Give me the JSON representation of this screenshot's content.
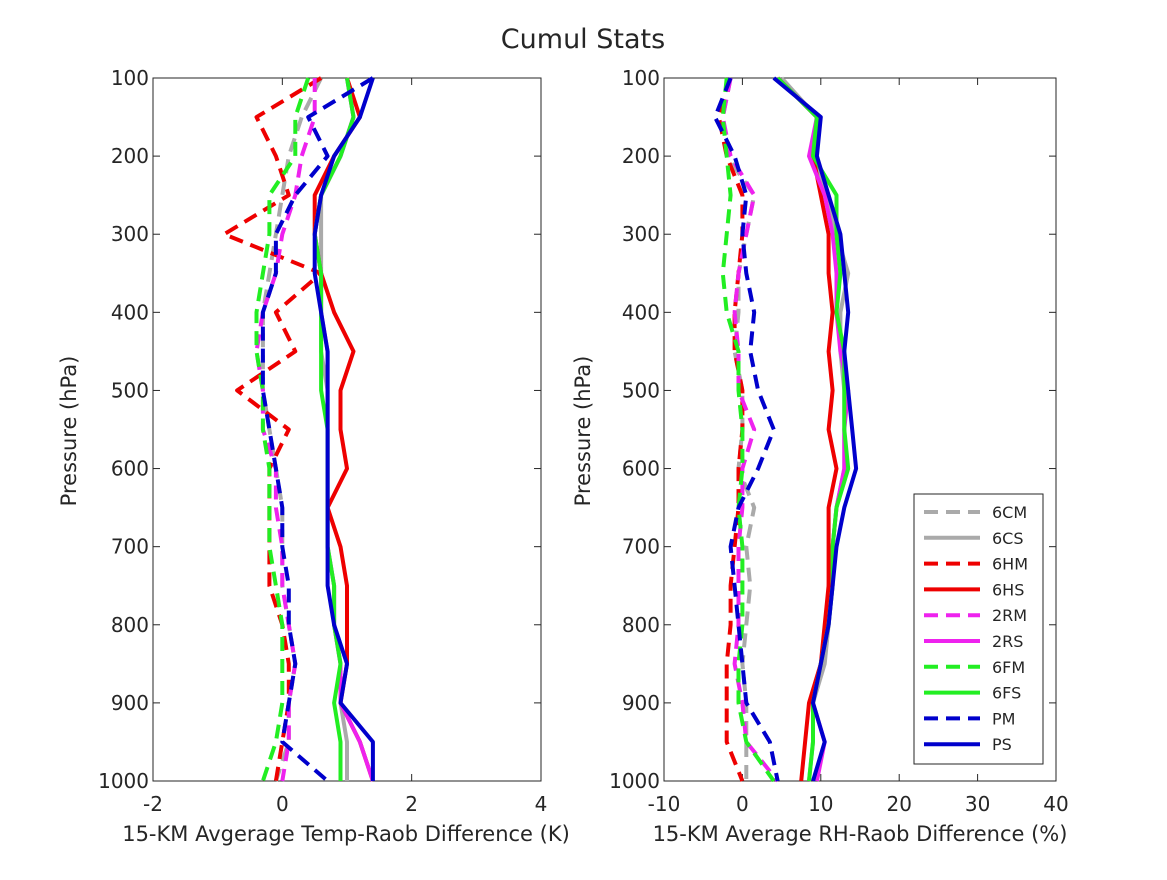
{
  "title": "Cumul Stats",
  "legend": {
    "placement": "bottom-right of right panel",
    "entries": [
      {
        "label": "6CM",
        "color": "#aaaaaa",
        "dashed": true
      },
      {
        "label": "6CS",
        "color": "#aaaaaa",
        "dashed": false
      },
      {
        "label": "6HM",
        "color": "#ee0000",
        "dashed": true
      },
      {
        "label": "6HS",
        "color": "#ee0000",
        "dashed": false
      },
      {
        "label": "2RM",
        "color": "#ee22ee",
        "dashed": true
      },
      {
        "label": "2RS",
        "color": "#ee22ee",
        "dashed": false
      },
      {
        "label": "6FM",
        "color": "#22ee22",
        "dashed": true
      },
      {
        "label": "6FS",
        "color": "#22ee22",
        "dashed": false
      },
      {
        "label": "PM",
        "color": "#0000cc",
        "dashed": true
      },
      {
        "label": "PS",
        "color": "#0000cc",
        "dashed": false
      }
    ]
  },
  "chart_data": [
    {
      "type": "line",
      "xlabel": "15-KM Avgerage Temp-Raob Difference (K)",
      "ylabel": "Pressure (hPa)",
      "xlim": [
        -2,
        4
      ],
      "ylim": [
        100,
        1000
      ],
      "y_reversed": true,
      "xticks": [
        "-2",
        "0",
        "2",
        "4"
      ],
      "yticks": [
        "100",
        "200",
        "300",
        "400",
        "500",
        "600",
        "700",
        "800",
        "900",
        "1000"
      ],
      "grid": false,
      "pressure_levels": [
        100,
        150,
        200,
        250,
        300,
        350,
        400,
        450,
        500,
        550,
        600,
        650,
        700,
        750,
        800,
        850,
        900,
        950,
        1000
      ],
      "series": [
        {
          "name": "6CM",
          "values": [
            0.6,
            0.3,
            0.1,
            0.0,
            -0.1,
            -0.2,
            -0.3,
            -0.3,
            -0.3,
            -0.2,
            -0.1,
            0.0,
            0.0,
            0.0,
            0.1,
            0.2,
            0.1,
            0.1,
            -0.1
          ]
        },
        {
          "name": "6CS",
          "values": [
            1.0,
            1.1,
            0.9,
            0.6,
            0.6,
            0.6,
            0.6,
            0.6,
            0.7,
            0.7,
            0.7,
            0.7,
            0.7,
            0.8,
            0.8,
            0.9,
            0.9,
            1.0,
            1.0
          ]
        },
        {
          "name": "6HM",
          "values": [
            0.6,
            -0.4,
            -0.1,
            0.1,
            -0.9,
            0.6,
            -0.1,
            0.2,
            -0.7,
            0.1,
            -0.2,
            -0.2,
            -0.2,
            -0.2,
            0.0,
            0.1,
            0.1,
            0.0,
            -0.1
          ]
        },
        {
          "name": "6HS",
          "values": [
            1.0,
            1.2,
            0.8,
            0.5,
            0.5,
            0.6,
            0.8,
            1.1,
            0.9,
            0.9,
            1.0,
            0.7,
            0.9,
            1.0,
            1.0,
            1.0,
            0.9,
            1.2,
            1.4
          ]
        },
        {
          "name": "2RM",
          "values": [
            0.5,
            0.5,
            0.3,
            0.2,
            0.0,
            -0.1,
            -0.3,
            -0.4,
            -0.3,
            -0.3,
            -0.1,
            -0.1,
            0.0,
            0.0,
            0.1,
            0.2,
            0.1,
            0.1,
            0.0
          ]
        },
        {
          "name": "2RS",
          "values": [
            1.0,
            1.1,
            0.9,
            0.6,
            0.5,
            0.6,
            0.6,
            0.7,
            0.7,
            0.7,
            0.7,
            0.7,
            0.7,
            0.8,
            0.8,
            0.9,
            0.9,
            1.2,
            1.4
          ]
        },
        {
          "name": "6FM",
          "values": [
            0.4,
            0.2,
            0.2,
            -0.2,
            -0.2,
            -0.3,
            -0.4,
            -0.4,
            -0.3,
            -0.3,
            -0.2,
            -0.2,
            -0.2,
            -0.1,
            0.0,
            0.0,
            0.0,
            -0.1,
            -0.3
          ]
        },
        {
          "name": "6FS",
          "values": [
            1.0,
            1.1,
            0.9,
            0.6,
            0.5,
            0.6,
            0.6,
            0.6,
            0.6,
            0.7,
            0.7,
            0.7,
            0.7,
            0.8,
            0.8,
            0.9,
            0.8,
            0.9,
            0.9
          ]
        },
        {
          "name": "PM",
          "values": [
            1.4,
            0.4,
            0.7,
            0.2,
            -0.1,
            -0.1,
            -0.3,
            -0.3,
            -0.3,
            -0.2,
            -0.1,
            0.0,
            0.0,
            0.1,
            0.1,
            0.2,
            0.1,
            0.0,
            0.7
          ]
        },
        {
          "name": "PS",
          "values": [
            1.4,
            1.2,
            0.8,
            0.6,
            0.5,
            0.5,
            0.6,
            0.7,
            0.7,
            0.7,
            0.7,
            0.7,
            0.7,
            0.7,
            0.8,
            1.0,
            0.9,
            1.4,
            1.4
          ]
        }
      ]
    },
    {
      "type": "line",
      "xlabel": "15-KM Average RH-Raob Difference (%)",
      "ylabel": "Pressure (hPa)",
      "xlim": [
        -10,
        40
      ],
      "ylim": [
        100,
        1000
      ],
      "y_reversed": true,
      "xticks": [
        "-10",
        "0",
        "10",
        "20",
        "30",
        "40"
      ],
      "yticks": [
        "100",
        "200",
        "300",
        "400",
        "500",
        "600",
        "700",
        "800",
        "900",
        "1000"
      ],
      "grid": false,
      "pressure_levels": [
        100,
        150,
        200,
        250,
        300,
        350,
        400,
        450,
        500,
        550,
        600,
        650,
        700,
        750,
        800,
        850,
        900,
        950,
        1000
      ],
      "series": [
        {
          "name": "6CM",
          "values": [
            -1.5,
            -2.5,
            -2.0,
            1.5,
            0.5,
            -0.5,
            -0.5,
            -1.0,
            0.0,
            0.0,
            -0.5,
            1.5,
            0.5,
            1.0,
            0.5,
            0.0,
            0.5,
            0.5,
            0.5
          ]
        },
        {
          "name": "6CS",
          "values": [
            5.0,
            9.5,
            9.0,
            11.0,
            12.0,
            13.5,
            12.5,
            12.5,
            13.0,
            13.0,
            13.0,
            12.0,
            11.5,
            11.0,
            11.0,
            10.5,
            9.0,
            9.0,
            8.5
          ]
        },
        {
          "name": "6HM",
          "values": [
            -1.5,
            -3.0,
            -2.0,
            0.0,
            0.0,
            -0.5,
            -1.0,
            -1.0,
            0.0,
            0.0,
            -0.5,
            -0.5,
            -1.0,
            -1.5,
            -1.5,
            -2.0,
            -2.0,
            -2.0,
            0.0
          ]
        },
        {
          "name": "6HS",
          "values": [
            4.5,
            9.5,
            9.0,
            10.0,
            11.0,
            11.0,
            11.5,
            11.0,
            11.5,
            11.0,
            12.0,
            11.0,
            11.0,
            11.0,
            10.5,
            10.0,
            8.5,
            8.0,
            7.5
          ]
        },
        {
          "name": "2RM",
          "values": [
            -1.5,
            -2.5,
            -1.5,
            1.5,
            0.5,
            -0.5,
            -1.0,
            -0.5,
            -0.5,
            1.5,
            0.0,
            0.0,
            -0.5,
            -0.5,
            -0.5,
            -1.0,
            0.0,
            0.5,
            4.5
          ]
        },
        {
          "name": "2RS",
          "values": [
            4.5,
            9.5,
            8.5,
            10.5,
            11.5,
            12.0,
            12.0,
            12.5,
            13.5,
            13.0,
            13.0,
            12.0,
            11.5,
            11.5,
            11.0,
            10.0,
            9.0,
            10.5,
            9.5
          ]
        },
        {
          "name": "6FM",
          "values": [
            -2.0,
            -2.5,
            -2.0,
            -1.5,
            -2.0,
            -2.5,
            -2.0,
            -0.5,
            -0.5,
            0.0,
            0.0,
            -0.5,
            0.0,
            0.0,
            0.0,
            -0.5,
            -0.5,
            0.5,
            4.0
          ]
        },
        {
          "name": "6FS",
          "values": [
            4.5,
            9.5,
            9.0,
            12.0,
            12.0,
            12.5,
            12.0,
            13.0,
            13.0,
            13.0,
            13.5,
            12.0,
            11.5,
            11.5,
            11.0,
            10.0,
            9.0,
            9.0,
            8.5
          ]
        },
        {
          "name": "PM",
          "values": [
            -1.5,
            -3.5,
            -1.0,
            0.5,
            0.0,
            0.5,
            1.5,
            1.0,
            2.0,
            4.0,
            2.0,
            -0.5,
            -1.5,
            -1.0,
            -0.5,
            0.0,
            0.5,
            3.5,
            4.5
          ]
        },
        {
          "name": "PS",
          "values": [
            4.0,
            10.0,
            9.5,
            11.0,
            12.5,
            13.0,
            13.5,
            13.0,
            13.5,
            14.0,
            14.5,
            13.0,
            12.0,
            11.5,
            11.0,
            10.0,
            9.0,
            10.5,
            9.0
          ]
        }
      ]
    }
  ]
}
